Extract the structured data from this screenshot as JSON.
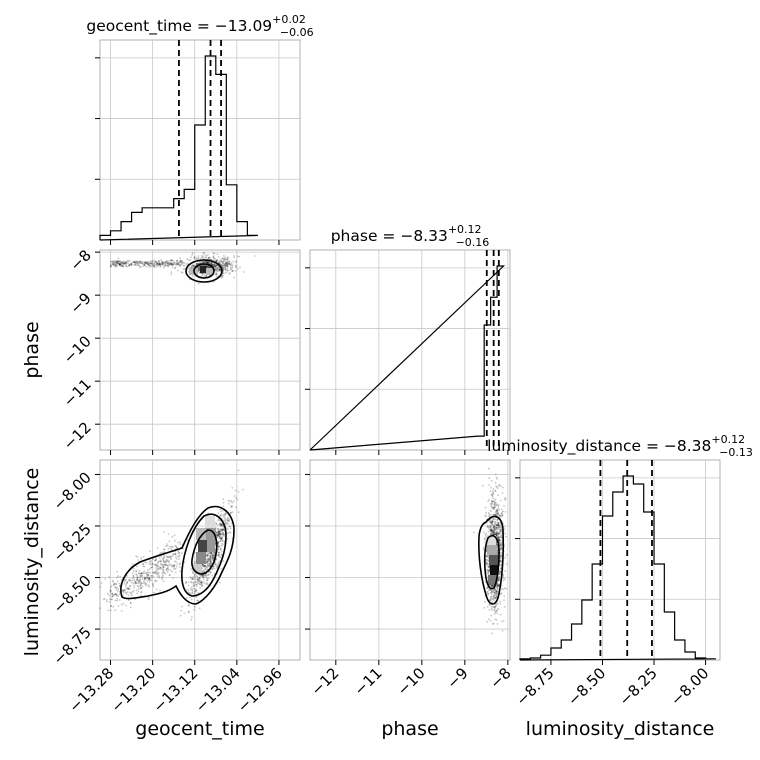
{
  "chart_data": {
    "type": "corner",
    "parameters": [
      {
        "name": "geocent_time",
        "label": "geocent_time",
        "median": -13.09,
        "err_plus": 0.02,
        "err_minus": 0.06,
        "title_main": "geocent_time = −13.09",
        "title_sup": "+0.02",
        "title_sub": "−0.06",
        "quantiles": [
          -13.15,
          -13.09,
          -13.07
        ],
        "lim": [
          -13.3,
          -12.92
        ],
        "ticks": [
          -13.28,
          -13.2,
          -13.12,
          -13.04,
          -12.96
        ],
        "tick_labels": [
          "−13.28",
          "−13.20",
          "−13.12",
          "−13.04",
          "−12.96"
        ],
        "hist_edges": [
          -13.3,
          -13.28,
          -13.26,
          -13.24,
          -13.22,
          -13.2,
          -13.18,
          -13.16,
          -13.14,
          -13.12,
          -13.1,
          -13.08,
          -13.06,
          -13.04,
          -13.02,
          -13.0
        ],
        "hist_counts": [
          1,
          2,
          4,
          6,
          7,
          7,
          7,
          9,
          11,
          25,
          40,
          36,
          12,
          4,
          1
        ]
      },
      {
        "name": "phase",
        "label": "phase",
        "median": -8.33,
        "err_plus": 0.12,
        "err_minus": 0.16,
        "title_main": "phase = −8.33",
        "title_sup": "+0.12",
        "title_sub": "−0.16",
        "quantiles": [
          -8.49,
          -8.33,
          -8.21
        ],
        "lim": [
          -12.6,
          -7.95
        ],
        "ticks": [
          -12,
          -11,
          -10,
          -9,
          -8
        ],
        "tick_labels": [
          "−12",
          "−11",
          "−10",
          "−9",
          "−8"
        ],
        "hist_edges": [
          -8.7,
          -8.55,
          -8.4,
          -8.25,
          -8.1
        ],
        "hist_counts": [
          0.4,
          3.6,
          4.4,
          5.3
        ]
      },
      {
        "name": "luminosity_distance",
        "label": "luminosity_distance",
        "median": -8.38,
        "err_plus": 0.12,
        "err_minus": 0.13,
        "title_main": "luminosity_distance = −8.38",
        "title_sup": "+0.12",
        "title_sub": "−0.13",
        "quantiles": [
          -8.51,
          -8.38,
          -8.26
        ],
        "lim": [
          -8.9,
          -7.93
        ],
        "ticks": [
          -8.75,
          -8.5,
          -8.25,
          -8.0
        ],
        "tick_labels": [
          "−8.75",
          "−8.50",
          "−8.25",
          "−8.00"
        ],
        "hist_edges": [
          -8.9,
          -8.85,
          -8.8,
          -8.75,
          -8.7,
          -8.65,
          -8.6,
          -8.55,
          -8.5,
          -8.45,
          -8.4,
          -8.35,
          -8.3,
          -8.25,
          -8.2,
          -8.15,
          -8.1,
          -8.05,
          -8.0,
          -7.95
        ],
        "hist_counts": [
          0.3,
          0.5,
          1.2,
          3,
          5,
          9,
          15,
          24,
          36,
          42,
          46,
          44,
          37,
          24,
          12,
          5,
          2,
          0.5,
          0.3
        ]
      }
    ],
    "grid": true
  }
}
